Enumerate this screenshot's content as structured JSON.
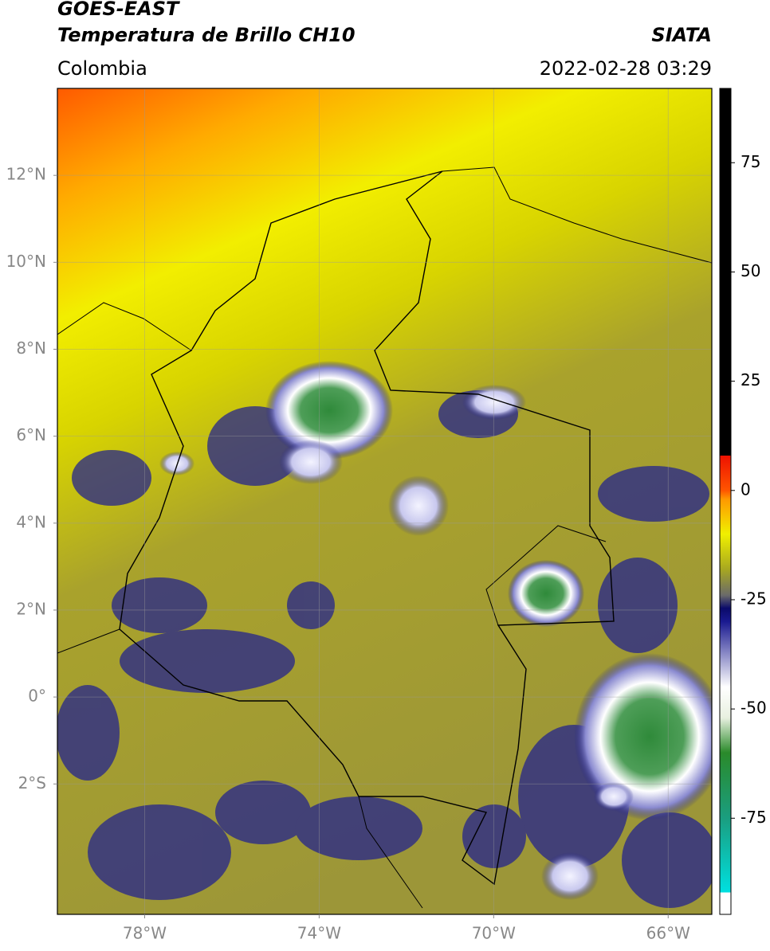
{
  "header": {
    "title": "GOES-EAST",
    "subtitle": "Temperatura de Brillo CH10",
    "source": "SIATA",
    "region": "Colombia",
    "datetime": "2022-02-28 03:29"
  },
  "map": {
    "xlim": [
      -80,
      -65
    ],
    "ylim": [
      -5,
      14
    ],
    "xticks": [
      {
        "value": -78,
        "label": "78°W"
      },
      {
        "value": -74,
        "label": "74°W"
      },
      {
        "value": -70,
        "label": "70°W"
      },
      {
        "value": -66,
        "label": "66°W"
      }
    ],
    "yticks": [
      {
        "value": 12,
        "label": "12°N"
      },
      {
        "value": 10,
        "label": "10°N"
      },
      {
        "value": 8,
        "label": "8°N"
      },
      {
        "value": 6,
        "label": "6°N"
      },
      {
        "value": 4,
        "label": "4°N"
      },
      {
        "value": 2,
        "label": "2°N"
      },
      {
        "value": 0,
        "label": "0°"
      },
      {
        "value": -2,
        "label": "2°S"
      }
    ],
    "grid": true
  },
  "colorbar": {
    "lim": [
      -97,
      92
    ],
    "ticks": [
      -75,
      -50,
      -25,
      0,
      25,
      50,
      75
    ],
    "stops": [
      {
        "value": -97,
        "color": "#ffffff"
      },
      {
        "value": -92,
        "color": "#ffffff"
      },
      {
        "value": -92,
        "color": "#00e0e0"
      },
      {
        "value": -75,
        "color": "#1a9e80"
      },
      {
        "value": -60,
        "color": "#2a8a2a"
      },
      {
        "value": -52,
        "color": "#e8f0e0"
      },
      {
        "value": -45,
        "color": "#ffffff"
      },
      {
        "value": -30,
        "color": "#1a1a90"
      },
      {
        "value": -27,
        "color": "#0a0a6a"
      },
      {
        "value": -24,
        "color": "#6a6a6a"
      },
      {
        "value": -18,
        "color": "#a8a820"
      },
      {
        "value": -10,
        "color": "#f0f000"
      },
      {
        "value": -2,
        "color": "#ff9900"
      },
      {
        "value": 0,
        "color": "#ff5500"
      },
      {
        "value": 8,
        "color": "#ee1100"
      },
      {
        "value": 8,
        "color": "#000000"
      },
      {
        "value": 92,
        "color": "#000000"
      }
    ]
  }
}
